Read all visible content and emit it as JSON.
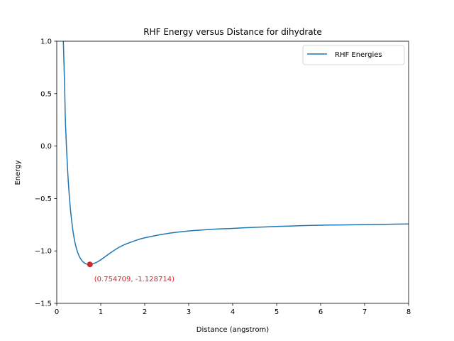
{
  "chart_data": {
    "type": "line",
    "title": "RHF Energy versus Distance for dihydrate",
    "xlabel": "Distance (angstrom)",
    "ylabel": "Energy",
    "xlim": [
      0,
      8
    ],
    "ylim": [
      -1.5,
      1.0
    ],
    "xticks": [
      0,
      1,
      2,
      3,
      4,
      5,
      6,
      7,
      8
    ],
    "xtick_labels": [
      "0",
      "1",
      "2",
      "3",
      "4",
      "5",
      "6",
      "7",
      "8"
    ],
    "yticks": [
      -1.5,
      -1.0,
      -0.5,
      0.0,
      0.5,
      1.0
    ],
    "ytick_labels": [
      "−1.5",
      "−1.0",
      "−0.5",
      "0.0",
      "0.5",
      "1.0"
    ],
    "grid": false,
    "legend_position": "top-right",
    "series": [
      {
        "name": "RHF Energies",
        "color": "#1f77b4",
        "x": [
          0.15,
          0.18,
          0.2,
          0.25,
          0.3,
          0.35,
          0.4,
          0.45,
          0.5,
          0.55,
          0.6,
          0.65,
          0.7,
          0.754709,
          0.8,
          0.9,
          1.0,
          1.2,
          1.4,
          1.6,
          1.8,
          2.0,
          2.5,
          3.0,
          3.5,
          4.0,
          4.5,
          5.0,
          5.5,
          6.0,
          6.5,
          7.0,
          7.5,
          8.0
        ],
        "y": [
          1.0,
          0.55,
          0.2,
          -0.25,
          -0.55,
          -0.75,
          -0.89,
          -0.98,
          -1.04,
          -1.08,
          -1.105,
          -1.12,
          -1.127,
          -1.128714,
          -1.125,
          -1.11,
          -1.085,
          -1.025,
          -0.97,
          -0.93,
          -0.9,
          -0.875,
          -0.835,
          -0.81,
          -0.795,
          -0.785,
          -0.775,
          -0.767,
          -0.76,
          -0.755,
          -0.752,
          -0.749,
          -0.746,
          -0.743
        ]
      }
    ],
    "highlight_point": {
      "x": 0.754709,
      "y": -1.128714,
      "color": "#d62728",
      "label": "(0.754709, -1.128714)"
    }
  }
}
